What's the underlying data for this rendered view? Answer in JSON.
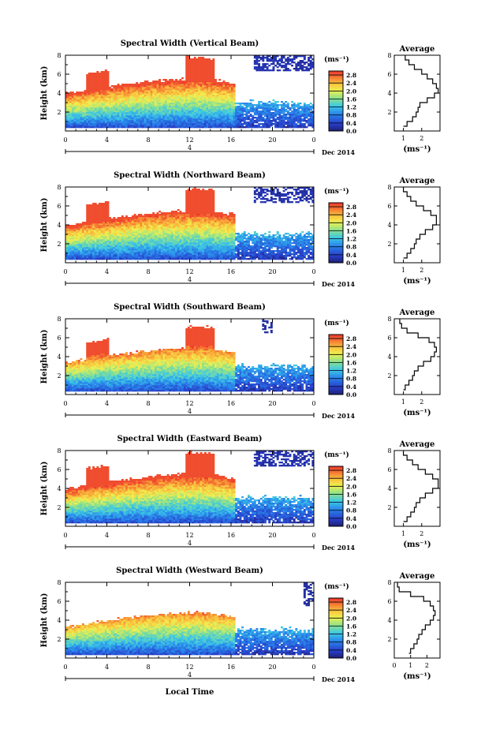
{
  "labels": {
    "height_axis": "Height (km)",
    "x_axis": "Local Time",
    "date": "Dec 2014",
    "date_day": "4",
    "unit_label": "(ms⁻¹)",
    "average_title": "Average",
    "average_unit": "(ms⁻¹)"
  },
  "chart_data": [
    {
      "type": "heatmap",
      "title": "Spectral Width (Vertical Beam)",
      "xlabel": "",
      "ylabel": "Height (km)",
      "xlim": [
        0,
        24
      ],
      "ylim": [
        0,
        8
      ],
      "x_ticks": [
        "0",
        "4",
        "8",
        "12",
        "16",
        "20",
        "0"
      ],
      "y_ticks": [
        "2",
        "4",
        "6",
        "8"
      ],
      "colorbar": {
        "ticks": [
          "0.0",
          "0.4",
          "0.8",
          "1.2",
          "1.6",
          "2.0",
          "2.4",
          "2.8"
        ],
        "range": [
          0,
          3.0
        ],
        "label": "(ms⁻¹)"
      },
      "average_profile": {
        "title": "Average",
        "xlabel": "(ms⁻¹)",
        "x_ticks": [
          "1",
          "2"
        ],
        "xlim": [
          0.5,
          3.0
        ],
        "y_ticks": [
          "2",
          "4",
          "6",
          "8"
        ],
        "points": [
          [
            1.0,
            0.5
          ],
          [
            1.2,
            1.0
          ],
          [
            1.5,
            1.5
          ],
          [
            1.7,
            2.0
          ],
          [
            1.8,
            2.5
          ],
          [
            1.9,
            3.0
          ],
          [
            2.3,
            3.5
          ],
          [
            2.7,
            4.0
          ],
          [
            2.9,
            4.5
          ],
          [
            2.8,
            5.0
          ],
          [
            2.6,
            5.5
          ],
          [
            2.3,
            6.0
          ],
          [
            2.0,
            6.5
          ],
          [
            1.6,
            7.0
          ],
          [
            1.3,
            7.5
          ],
          [
            1.1,
            8.0
          ]
        ]
      }
    },
    {
      "type": "heatmap",
      "title": "Spectral Width (Northward Beam)",
      "xlabel": "",
      "ylabel": "Height (km)",
      "xlim": [
        0,
        24
      ],
      "ylim": [
        0,
        8
      ],
      "x_ticks": [
        "0",
        "4",
        "8",
        "12",
        "16",
        "20",
        "0"
      ],
      "y_ticks": [
        "2",
        "4",
        "6",
        "8"
      ],
      "colorbar": {
        "ticks": [
          "0.0",
          "0.4",
          "0.8",
          "1.2",
          "1.6",
          "2.0",
          "2.4",
          "2.8"
        ],
        "range": [
          0,
          3.0
        ],
        "label": "(ms⁻¹)"
      },
      "average_profile": {
        "title": "Average",
        "xlabel": "(ms⁻¹)",
        "x_ticks": [
          "1",
          "2"
        ],
        "xlim": [
          0.5,
          3.0
        ],
        "y_ticks": [
          "2",
          "4",
          "6",
          "8"
        ],
        "points": [
          [
            1.0,
            0.5
          ],
          [
            1.2,
            1.0
          ],
          [
            1.4,
            1.5
          ],
          [
            1.6,
            2.0
          ],
          [
            1.7,
            2.5
          ],
          [
            1.9,
            3.0
          ],
          [
            2.2,
            3.5
          ],
          [
            2.6,
            4.0
          ],
          [
            2.8,
            4.5
          ],
          [
            2.8,
            5.0
          ],
          [
            2.5,
            5.5
          ],
          [
            2.1,
            6.0
          ],
          [
            1.7,
            6.5
          ],
          [
            1.4,
            7.0
          ],
          [
            1.2,
            7.5
          ],
          [
            1.0,
            8.0
          ]
        ]
      }
    },
    {
      "type": "heatmap",
      "title": "Spectral Width (Southward Beam)",
      "xlabel": "",
      "ylabel": "Height (km)",
      "xlim": [
        0,
        24
      ],
      "ylim": [
        0,
        8
      ],
      "x_ticks": [
        "0",
        "4",
        "8",
        "12",
        "16",
        "20",
        "0"
      ],
      "y_ticks": [
        "2",
        "4",
        "6",
        "8"
      ],
      "colorbar": {
        "ticks": [
          "0.0",
          "0.4",
          "0.8",
          "1.2",
          "1.6",
          "2.0",
          "2.4",
          "2.8"
        ],
        "range": [
          0,
          3.0
        ],
        "label": "(ms⁻¹)"
      },
      "average_profile": {
        "title": "Average",
        "xlabel": "(ms⁻¹)",
        "x_ticks": [
          "1",
          "2"
        ],
        "xlim": [
          0.5,
          3.0
        ],
        "y_ticks": [
          "2",
          "4",
          "6",
          "8"
        ],
        "points": [
          [
            1.0,
            0.5
          ],
          [
            1.1,
            1.0
          ],
          [
            1.3,
            1.5
          ],
          [
            1.5,
            2.0
          ],
          [
            1.6,
            2.5
          ],
          [
            1.8,
            3.0
          ],
          [
            2.1,
            3.5
          ],
          [
            2.5,
            4.0
          ],
          [
            2.7,
            4.5
          ],
          [
            2.8,
            5.0
          ],
          [
            2.7,
            5.5
          ],
          [
            2.4,
            6.0
          ],
          [
            1.8,
            6.5
          ],
          [
            1.2,
            7.0
          ],
          [
            0.9,
            7.5
          ],
          [
            0.8,
            8.0
          ]
        ]
      }
    },
    {
      "type": "heatmap",
      "title": "Spectral Width (Eastward Beam)",
      "xlabel": "",
      "ylabel": "Height (km)",
      "xlim": [
        0,
        24
      ],
      "ylim": [
        0,
        8
      ],
      "x_ticks": [
        "0",
        "4",
        "8",
        "12",
        "16",
        "20",
        "0"
      ],
      "y_ticks": [
        "2",
        "4",
        "6",
        "8"
      ],
      "colorbar": {
        "ticks": [
          "0.0",
          "0.4",
          "0.8",
          "1.2",
          "1.6",
          "2.0",
          "2.4",
          "2.8"
        ],
        "range": [
          0,
          3.0
        ],
        "label": "(ms⁻¹)"
      },
      "average_profile": {
        "title": "Average",
        "xlabel": "(ms⁻¹)",
        "x_ticks": [
          "1",
          "2"
        ],
        "xlim": [
          0.5,
          3.0
        ],
        "y_ticks": [
          "2",
          "4",
          "6",
          "8"
        ],
        "points": [
          [
            1.0,
            0.5
          ],
          [
            1.2,
            1.0
          ],
          [
            1.4,
            1.5
          ],
          [
            1.6,
            2.0
          ],
          [
            1.7,
            2.5
          ],
          [
            1.9,
            3.0
          ],
          [
            2.2,
            3.5
          ],
          [
            2.6,
            4.0
          ],
          [
            2.9,
            4.5
          ],
          [
            2.9,
            5.0
          ],
          [
            2.6,
            5.5
          ],
          [
            2.2,
            6.0
          ],
          [
            1.8,
            6.5
          ],
          [
            1.5,
            7.0
          ],
          [
            1.2,
            7.5
          ],
          [
            1.0,
            8.0
          ]
        ]
      }
    },
    {
      "type": "heatmap",
      "title": "Spectral Width (Westward Beam)",
      "xlabel": "Local Time",
      "ylabel": "Height (km)",
      "xlim": [
        0,
        24
      ],
      "ylim": [
        0,
        8
      ],
      "x_ticks": [
        "0",
        "4",
        "8",
        "12",
        "16",
        "20",
        "0"
      ],
      "y_ticks": [
        "2",
        "4",
        "6",
        "8"
      ],
      "colorbar": {
        "ticks": [
          "0.0",
          "0.4",
          "0.8",
          "1.2",
          "1.6",
          "2.0",
          "2.4",
          "2.8"
        ],
        "range": [
          0,
          3.0
        ],
        "label": "(ms⁻¹)"
      },
      "average_profile": {
        "title": "Average",
        "xlabel": "(ms⁻¹)",
        "x_ticks": [
          "0",
          "1",
          "2"
        ],
        "xlim": [
          0,
          2.8
        ],
        "y_ticks": [
          "2",
          "4",
          "6",
          "8"
        ],
        "points": [
          [
            0.9,
            0.5
          ],
          [
            1.0,
            1.0
          ],
          [
            1.2,
            1.5
          ],
          [
            1.4,
            2.0
          ],
          [
            1.5,
            2.5
          ],
          [
            1.7,
            3.0
          ],
          [
            1.9,
            3.5
          ],
          [
            2.2,
            4.0
          ],
          [
            2.4,
            4.5
          ],
          [
            2.5,
            5.0
          ],
          [
            2.4,
            5.5
          ],
          [
            2.2,
            6.0
          ],
          [
            1.8,
            6.5
          ],
          [
            1.0,
            7.0
          ],
          [
            0.3,
            7.5
          ],
          [
            0.2,
            8.0
          ]
        ]
      }
    }
  ]
}
